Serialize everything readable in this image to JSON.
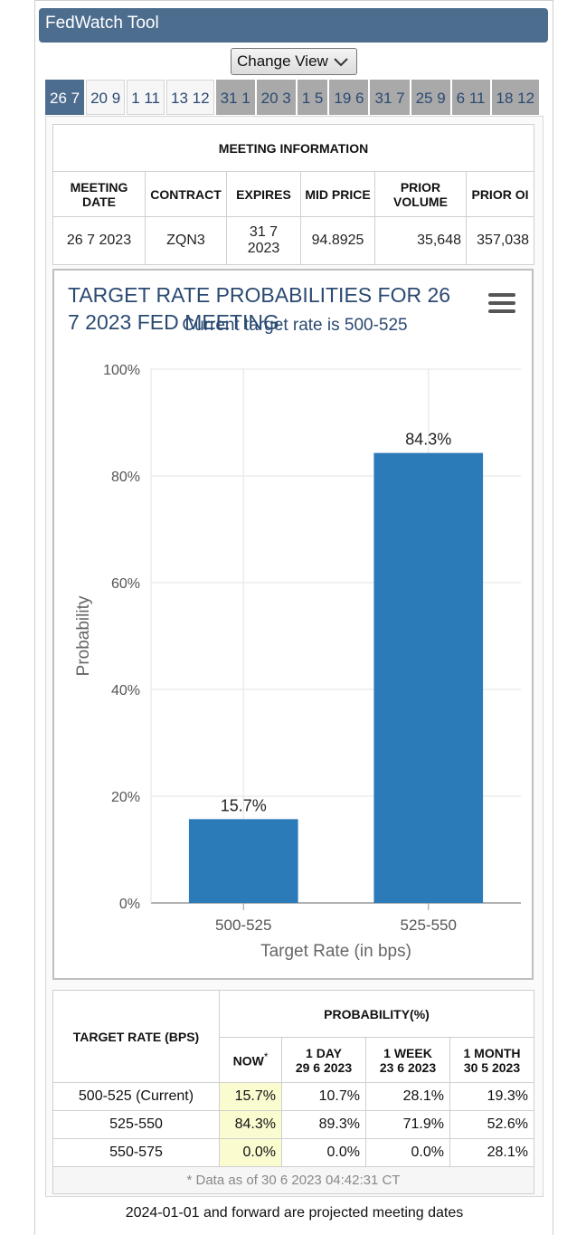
{
  "app": {
    "title": "FedWatch Tool",
    "change_view_label": "Change View"
  },
  "tabs": [
    {
      "label": "26 7",
      "state": "active"
    },
    {
      "label": "20 9",
      "state": "light"
    },
    {
      "label": "1 11",
      "state": "light"
    },
    {
      "label": "13 12",
      "state": "light"
    },
    {
      "label": "31 1",
      "state": "grey"
    },
    {
      "label": "20 3",
      "state": "grey"
    },
    {
      "label": "1 5",
      "state": "grey"
    },
    {
      "label": "19 6",
      "state": "grey"
    },
    {
      "label": "31 7",
      "state": "grey"
    },
    {
      "label": "25 9",
      "state": "grey"
    },
    {
      "label": "6 11",
      "state": "grey"
    },
    {
      "label": "18 12",
      "state": "grey"
    }
  ],
  "meeting_info": {
    "heading": "MEETING INFORMATION",
    "headers": {
      "meeting_date": "MEETING DATE",
      "contract": "CONTRACT",
      "expires": "EXPIRES",
      "mid_price": "MID PRICE",
      "prior_volume": "PRIOR VOLUME",
      "prior_oi": "PRIOR OI"
    },
    "row": {
      "meeting_date": "26 7 2023",
      "contract": "ZQN3",
      "expires": "31 7 2023",
      "mid_price": "94.8925",
      "prior_volume": "35,648",
      "prior_oi": "357,038"
    }
  },
  "chart_data": {
    "type": "bar",
    "title": "TARGET RATE PROBABILITIES FOR 26 7 2023 FED MEETING",
    "subtitle": "Current target rate is 500-525",
    "xlabel": "Target Rate (in bps)",
    "ylabel": "Probability",
    "categories": [
      "500-525",
      "525-550"
    ],
    "values": [
      15.7,
      84.3
    ],
    "data_labels": [
      "15.7%",
      "84.3%"
    ],
    "ylim": [
      0,
      100
    ],
    "yticks": [
      "0%",
      "20%",
      "40%",
      "60%",
      "80%",
      "100%"
    ],
    "ytick_values": [
      0,
      20,
      40,
      60,
      80,
      100
    ],
    "bar_color": "#2b7bb9",
    "grid": true,
    "legend": "none"
  },
  "probability_table": {
    "target_rate_header": "TARGET RATE (BPS)",
    "probability_header": "PROBABILITY(%)",
    "columns": [
      {
        "label": "NOW",
        "sub": "",
        "marker": "*"
      },
      {
        "label": "1 DAY",
        "sub": "29 6 2023"
      },
      {
        "label": "1 WEEK",
        "sub": "23 6 2023"
      },
      {
        "label": "1 MONTH",
        "sub": "30 5 2023"
      }
    ],
    "rows": [
      {
        "rate": "500-525 (Current)",
        "values": [
          "15.7%",
          "10.7%",
          "28.1%",
          "19.3%"
        ]
      },
      {
        "rate": "525-550",
        "values": [
          "84.3%",
          "89.3%",
          "71.9%",
          "52.6%"
        ]
      },
      {
        "rate": "550-575",
        "values": [
          "0.0%",
          "0.0%",
          "0.0%",
          "28.1%"
        ]
      }
    ],
    "note": "* Data as of 30 6 2023 04:42:31 CT"
  },
  "footer": "2024-01-01 and forward are projected meeting dates",
  "colors": {
    "header_bg": "#4d6d8f",
    "accent_text": "#2b4a72",
    "now_highlight": "#fafbcf"
  }
}
